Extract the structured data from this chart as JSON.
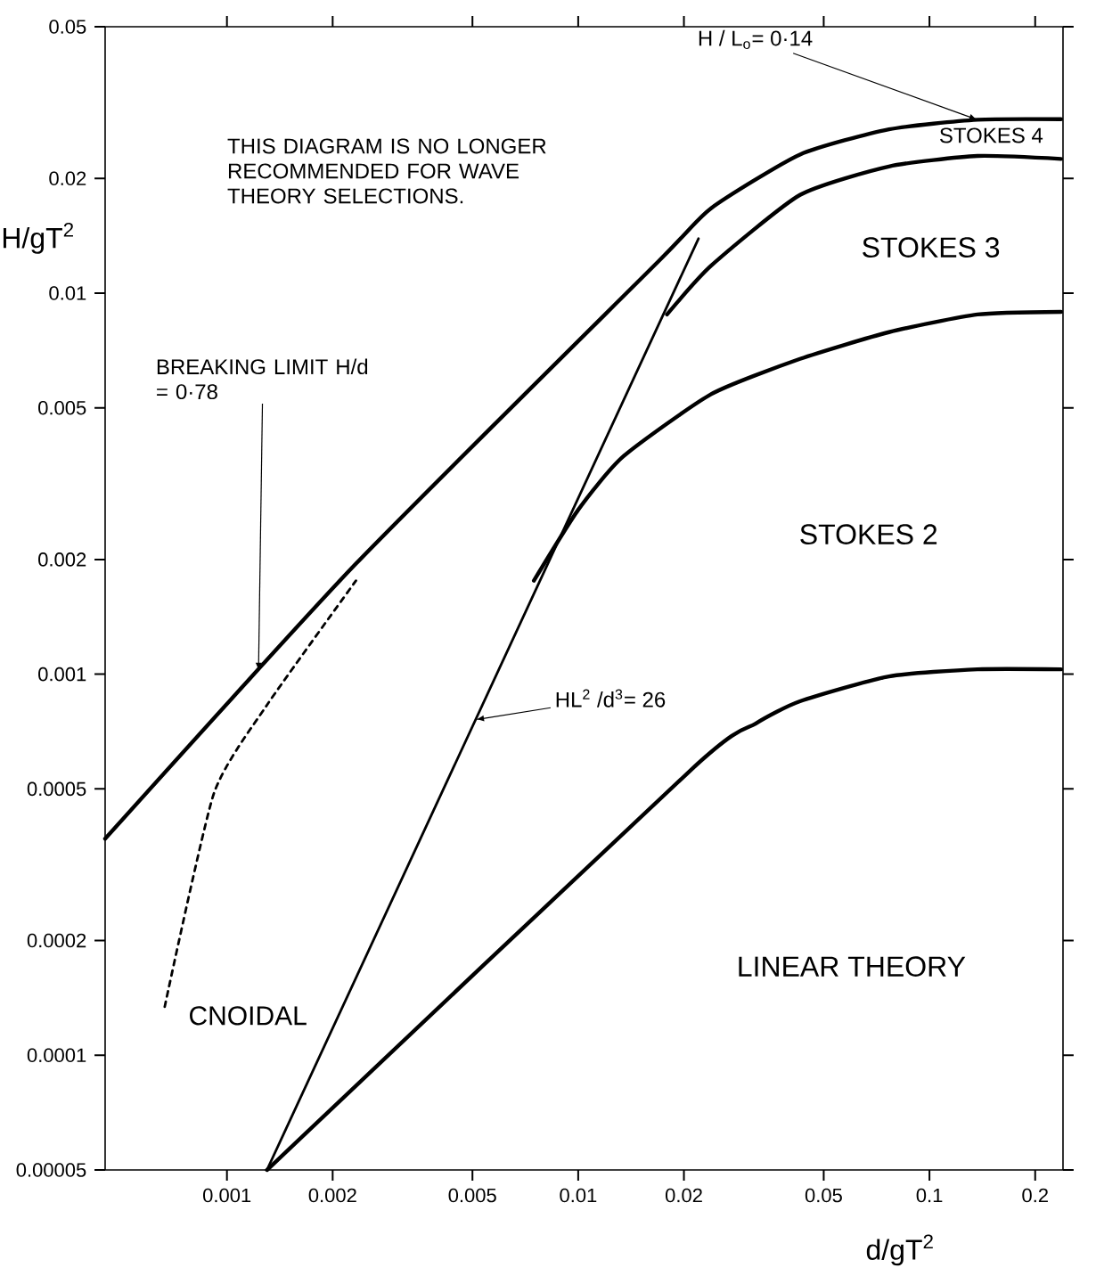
{
  "chart_data": {
    "type": "line",
    "xlabel": "d/gT$^{2}$",
    "ylabel": "H/gT$^{2}$",
    "log": "xy",
    "line_style": "solid",
    "xlim": [
      0.00045,
      0.24
    ],
    "ylim": [
      5e-05,
      0.05
    ],
    "xticks": [
      {
        "value": 0.001,
        "label": "0.001"
      },
      {
        "value": 0.002,
        "label": "0.002"
      },
      {
        "value": 0.005,
        "label": "0.005"
      },
      {
        "value": 0.01,
        "label": "0.01"
      },
      {
        "value": 0.02,
        "label": "0.02"
      },
      {
        "value": 0.05,
        "label": "0.05"
      },
      {
        "value": 0.1,
        "label": "0.1"
      },
      {
        "value": 0.2,
        "label": "0.2"
      }
    ],
    "yticks": [
      {
        "value": 5e-05,
        "label": "0.00005"
      },
      {
        "value": 0.0001,
        "label": "0.0001"
      },
      {
        "value": 0.0002,
        "label": "0.0002"
      },
      {
        "value": 0.0005,
        "label": "0.0005"
      },
      {
        "value": 0.001,
        "label": "0.001"
      },
      {
        "value": 0.002,
        "label": "0.002"
      },
      {
        "value": 0.005,
        "label": "0.005"
      },
      {
        "value": 0.01,
        "label": "0.01"
      },
      {
        "value": 0.02,
        "label": "0.02"
      },
      {
        "value": 0.05,
        "label": "0.05"
      }
    ],
    "series": [
      {
        "color": "#000000",
        "x": [
          0.00045,
          0.00233,
          0.0169,
          0.0239,
          0.0428,
          0.0767,
          0.137,
          0.237
        ],
        "values": [
          0.00037,
          0.00195,
          0.0121,
          0.0167,
          0.0231,
          0.0269,
          0.0285,
          0.0286
        ]
      },
      {
        "color": "#000000",
        "x": [
          0.0179,
          0.0239,
          0.0428,
          0.0767,
          0.137,
          0.237
        ],
        "values": [
          0.00879,
          0.0118,
          0.0181,
          0.0215,
          0.0229,
          0.0225
        ]
      },
      {
        "color": "#000000",
        "x": [
          0.00748,
          0.01,
          0.0134,
          0.0239,
          0.0428,
          0.0767,
          0.137,
          0.237
        ],
        "values": [
          0.00176,
          0.0027,
          0.00372,
          0.00543,
          0.00672,
          0.0079,
          0.00879,
          0.00893
        ]
      },
      {
        "color": "#000000",
        "x": [
          0.0013,
          0.0213,
          0.032,
          0.0428,
          0.0767,
          0.137,
          0.237
        ],
        "values": [
          5e-05,
          0.000569,
          0.000742,
          0.000849,
          0.000987,
          0.00103,
          0.00103
        ]
      },
      {
        "color": "#000000",
        "x": [
          0.0013,
          0.022
        ],
        "values": [
          5e-05,
          0.0139
        ]
      },
      {
        "color": "#000000",
        "line_style": "dashed",
        "x": [
          0.000665,
          0.000917,
          0.0013,
          0.00233
        ],
        "values": [
          0.000134,
          0.000485,
          0.00083,
          0.00176
        ]
      }
    ],
    "annotations": [
      "THIS DIAGRAM IS NO LONGER RECOMMENDED FOR WAVE THEORY SELECTIONS.",
      {
        "text": "H / L$_{o}$= 0·14",
        "x": 0.137,
        "y": 0.0285
      },
      "STOKES 4",
      "STOKES 3",
      "STOKES 2",
      "LINEAR THEORY",
      {
        "text": "BREAKING LIMIT H/d = 0·78",
        "x": 0.00123,
        "y": 0.00102
      },
      {
        "text": "HL$^{2}$ /d$^{3}$= 26",
        "x": 0.00511,
        "y": 0.00076
      },
      "CNOIDAL"
    ]
  }
}
